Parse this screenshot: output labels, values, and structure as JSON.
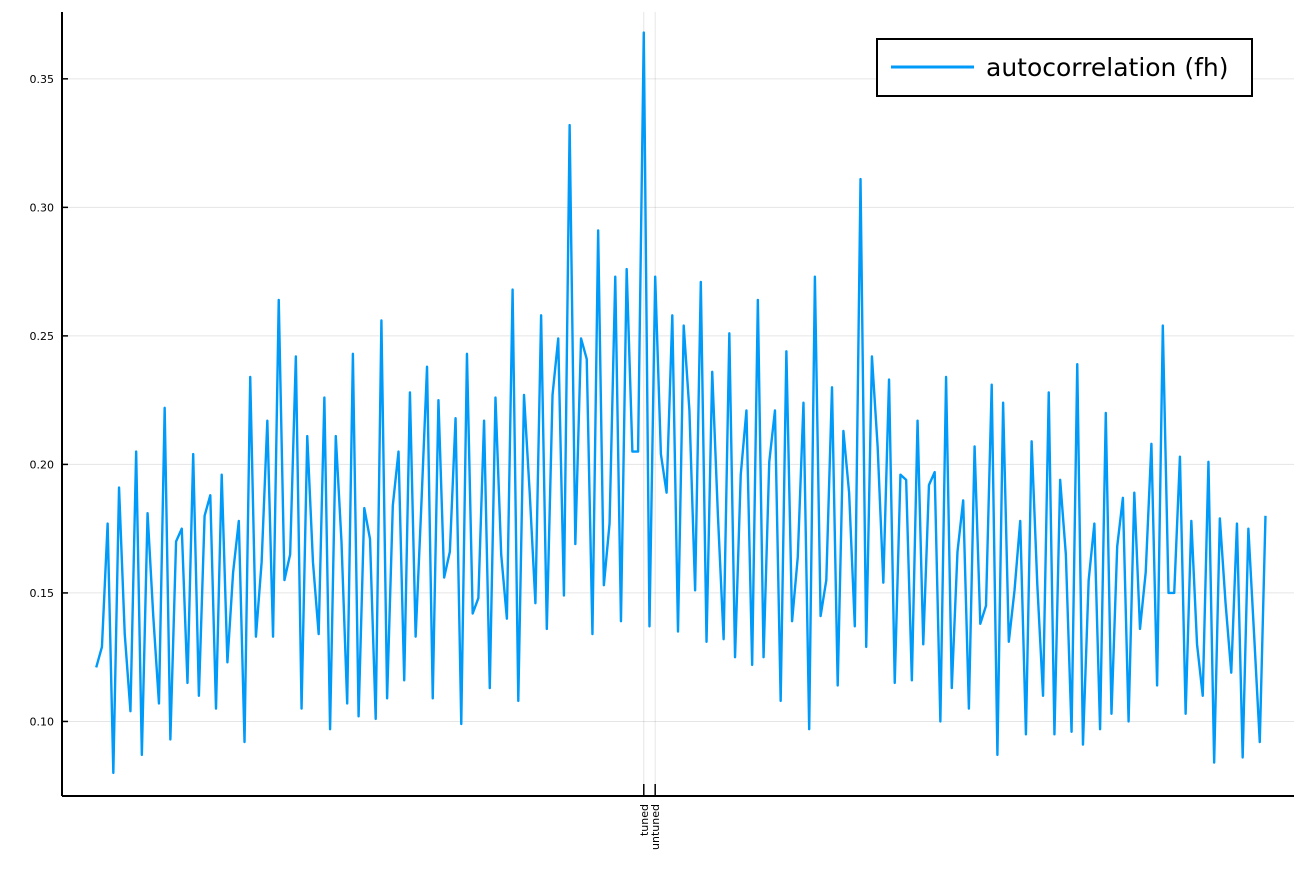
{
  "chart_data": {
    "type": "line",
    "title": "",
    "xlabel": "",
    "ylabel": "",
    "legend_position": "top-right",
    "grid": true,
    "ylim": [
      0.071,
      0.376
    ],
    "xlim": [
      -6,
      210
    ],
    "y_ticks": [
      0.1,
      0.15,
      0.2,
      0.25,
      0.3,
      0.35
    ],
    "y_tick_labels": [
      "0.10",
      "0.15",
      "0.20",
      "0.25",
      "0.30",
      "0.35"
    ],
    "x_ticks": [
      96,
      98
    ],
    "x_tick_labels": [
      "tuned",
      "untuned"
    ],
    "series": [
      {
        "name": "autocorrelation (fh)",
        "color": "#009af9",
        "x_start": 0,
        "values": [
          0.121,
          0.129,
          0.177,
          0.08,
          0.191,
          0.134,
          0.104,
          0.205,
          0.087,
          0.181,
          0.141,
          0.107,
          0.222,
          0.093,
          0.17,
          0.175,
          0.115,
          0.204,
          0.11,
          0.18,
          0.188,
          0.105,
          0.196,
          0.123,
          0.158,
          0.178,
          0.092,
          0.234,
          0.133,
          0.162,
          0.217,
          0.133,
          0.264,
          0.155,
          0.165,
          0.242,
          0.105,
          0.211,
          0.162,
          0.134,
          0.226,
          0.097,
          0.211,
          0.17,
          0.107,
          0.243,
          0.102,
          0.183,
          0.171,
          0.101,
          0.256,
          0.109,
          0.184,
          0.205,
          0.116,
          0.228,
          0.133,
          0.184,
          0.238,
          0.109,
          0.225,
          0.156,
          0.166,
          0.218,
          0.099,
          0.243,
          0.142,
          0.148,
          0.217,
          0.113,
          0.226,
          0.165,
          0.14,
          0.268,
          0.108,
          0.227,
          0.189,
          0.146,
          0.258,
          0.136,
          0.227,
          0.249,
          0.149,
          0.332,
          0.169,
          0.249,
          0.241,
          0.134,
          0.291,
          0.153,
          0.177,
          0.273,
          0.139,
          0.276,
          0.205,
          0.205,
          0.368,
          0.137,
          0.273,
          0.204,
          0.189,
          0.258,
          0.135,
          0.254,
          0.221,
          0.151,
          0.271,
          0.131,
          0.236,
          0.18,
          0.132,
          0.251,
          0.125,
          0.196,
          0.221,
          0.122,
          0.264,
          0.125,
          0.201,
          0.221,
          0.108,
          0.244,
          0.139,
          0.164,
          0.224,
          0.097,
          0.273,
          0.141,
          0.155,
          0.23,
          0.114,
          0.213,
          0.189,
          0.137,
          0.311,
          0.129,
          0.242,
          0.207,
          0.154,
          0.233,
          0.115,
          0.196,
          0.194,
          0.116,
          0.217,
          0.13,
          0.192,
          0.197,
          0.1,
          0.234,
          0.113,
          0.166,
          0.186,
          0.105,
          0.207,
          0.138,
          0.145,
          0.231,
          0.087,
          0.224,
          0.131,
          0.151,
          0.178,
          0.095,
          0.209,
          0.153,
          0.11,
          0.228,
          0.095,
          0.194,
          0.165,
          0.096,
          0.239,
          0.091,
          0.155,
          0.177,
          0.097,
          0.22,
          0.103,
          0.168,
          0.187,
          0.1,
          0.189,
          0.136,
          0.158,
          0.208,
          0.114,
          0.254,
          0.15,
          0.15,
          0.203,
          0.103,
          0.178,
          0.13,
          0.11,
          0.201,
          0.084,
          0.179,
          0.146,
          0.119,
          0.177,
          0.086,
          0.175,
          0.134,
          0.092,
          0.18
        ]
      }
    ]
  }
}
